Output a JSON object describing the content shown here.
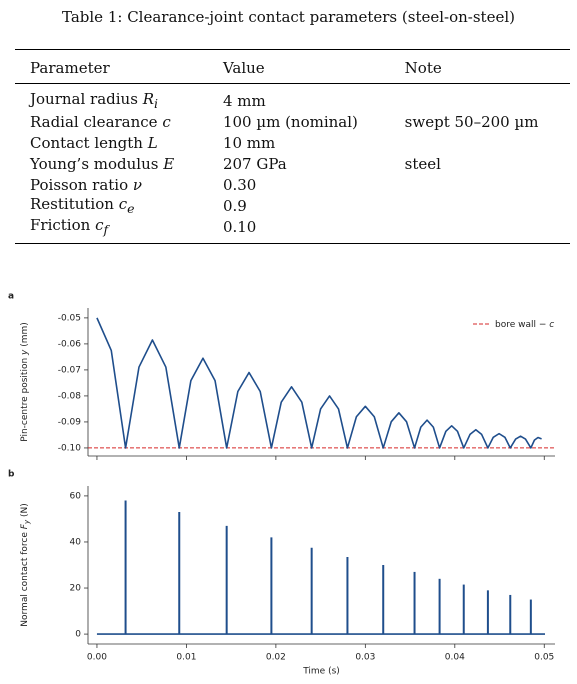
{
  "table": {
    "caption": "Table 1: Clearance-joint contact parameters (steel-on-steel)",
    "headers": [
      "Parameter",
      "Value",
      "Note"
    ],
    "rows": [
      {
        "parameter": {
          "text": "Journal radius",
          "symbol": "R",
          "sub": "i"
        },
        "value": "4 mm"
      },
      {
        "parameter": {
          "text": "Radial clearance",
          "symbol": "c"
        },
        "value": "100 µm (nominal)",
        "note": "swept 50–200 µm"
      },
      {
        "parameter": {
          "text": "Contact length",
          "symbol": "L"
        },
        "value": "10 mm"
      },
      {
        "parameter": {
          "text": "Young’s modulus",
          "symbol": "E"
        },
        "value": "207 GPa",
        "note": "steel"
      },
      {
        "parameter": {
          "text": "Poisson ratio",
          "symbol": "ν"
        },
        "value": "0.30"
      },
      {
        "parameter": {
          "text": "Restitution",
          "symbol": "c",
          "sub": "e"
        },
        "value": "0.9"
      },
      {
        "parameter": {
          "text": "Friction",
          "symbol": "c",
          "sub": "f"
        },
        "value": "0.10"
      }
    ]
  },
  "chart_data": [
    {
      "type": "line",
      "panel": "a",
      "ylabel": {
        "text": "Pin-centre position",
        "symbol": "y",
        "unit": "(mm)"
      },
      "x": [
        0,
        0.0016,
        0.0032,
        0.0047,
        0.0062,
        0.0077,
        0.0092,
        0.0105,
        0.01185,
        0.0132,
        0.0145,
        0.01575,
        0.017,
        0.01825,
        0.0195,
        0.0206,
        0.02175,
        0.0229,
        0.024,
        0.025,
        0.026,
        0.027,
        0.028,
        0.029,
        0.03,
        0.031,
        0.032,
        0.0329,
        0.03375,
        0.0346,
        0.0355,
        0.0362,
        0.0369,
        0.0376,
        0.0383,
        0.039,
        0.03965,
        0.0403,
        0.041,
        0.0417,
        0.04235,
        0.043,
        0.0437,
        0.0443,
        0.04495,
        0.0456,
        0.0462,
        0.0468,
        0.04735,
        0.0479,
        0.0485,
        0.0489,
        0.0493,
        0.0497
      ],
      "values": [
        -0.05,
        -0.0625,
        -0.1,
        -0.0689,
        -0.0585,
        -0.0689,
        -0.1,
        -0.0741,
        -0.0655,
        -0.0741,
        -0.1,
        -0.0783,
        -0.071,
        -0.0783,
        -0.1,
        -0.0824,
        -0.0765,
        -0.0824,
        -0.1,
        -0.085,
        -0.08,
        -0.085,
        -0.1,
        -0.088,
        -0.084,
        -0.088,
        -0.1,
        -0.0899,
        -0.0865,
        -0.0899,
        -0.1,
        -0.092,
        -0.0893,
        -0.092,
        -0.1,
        -0.0936,
        -0.0915,
        -0.0936,
        -0.1,
        -0.0948,
        -0.093,
        -0.0948,
        -0.1,
        -0.0959,
        -0.0945,
        -0.0959,
        -0.1,
        -0.0966,
        -0.0955,
        -0.0966,
        -0.1,
        -0.097,
        -0.096,
        -0.0965
      ],
      "color": "#1f4e8c",
      "reference_lines": [
        {
          "value": -0.1,
          "label": {
            "text": "bore wall −",
            "symbol": "c"
          },
          "color": "#d62728"
        }
      ],
      "legend": "upper right",
      "xlim": [
        -0.001,
        0.0512
      ],
      "ylim": [
        -0.1031,
        -0.0462
      ],
      "xticks": [
        0,
        0.01,
        0.02,
        0.03,
        0.04,
        0.05
      ],
      "yticks": [
        -0.05,
        -0.06,
        -0.07,
        -0.08,
        -0.09,
        {
          "value": -0.1,
          "label": "-0.10"
        }
      ]
    },
    {
      "type": "stem",
      "panel": "b",
      "xlabel": "Time (s)",
      "ylabel": {
        "text": "Normal contact force",
        "symbol": "F",
        "sub": "y",
        "unit": "(N)"
      },
      "x": [
        0.0032,
        0.0092,
        0.0145,
        0.0195,
        0.024,
        0.028,
        0.032,
        0.0355,
        0.0383,
        0.041,
        0.0437,
        0.0462,
        0.0485
      ],
      "values": [
        58,
        53,
        47,
        42,
        37.5,
        33.5,
        30,
        27,
        24,
        21.5,
        19,
        17,
        15
      ],
      "color": "#1f4e8c",
      "xlim": [
        -0.001,
        0.0512
      ],
      "ylim": [
        -4.3,
        64.3
      ],
      "xticks": [
        {
          "value": 0,
          "label": "0.00"
        },
        0.01,
        0.02,
        0.03,
        0.04,
        0.05
      ],
      "yticks": [
        0,
        20,
        40,
        60
      ]
    }
  ]
}
